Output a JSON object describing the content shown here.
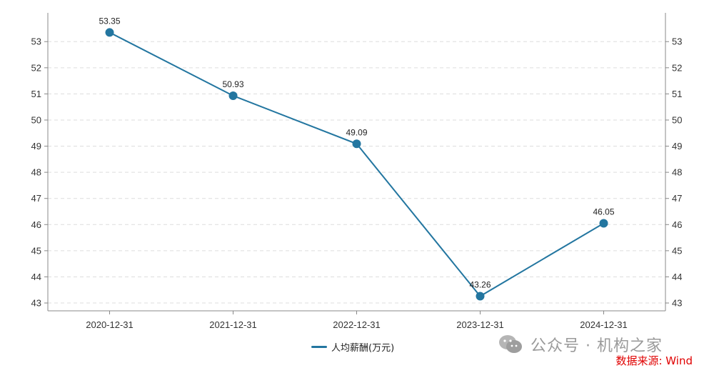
{
  "chart_data": {
    "type": "line",
    "categories": [
      "2020-12-31",
      "2021-12-31",
      "2022-12-31",
      "2023-12-31",
      "2024-12-31"
    ],
    "series": [
      {
        "name": "人均薪酬(万元)",
        "values": [
          53.35,
          50.93,
          49.09,
          43.26,
          46.05
        ]
      }
    ],
    "data_labels": [
      "53.35",
      "50.93",
      "49.09",
      "43.26",
      "46.05"
    ],
    "y_ticks": [
      "43",
      "44",
      "45",
      "46",
      "47",
      "48",
      "49",
      "50",
      "51",
      "52",
      "53"
    ],
    "ylim": [
      42.7,
      54.1
    ],
    "grid": "horizontal dashed",
    "legend_position": "bottom-center",
    "line_color": "#2376a0",
    "grid_color": "#dddddd",
    "axis_color": "#888888"
  },
  "watermark_text": "公众号 · 机构之家",
  "source_text": "数据来源: Wind",
  "source_color": "#e00000"
}
